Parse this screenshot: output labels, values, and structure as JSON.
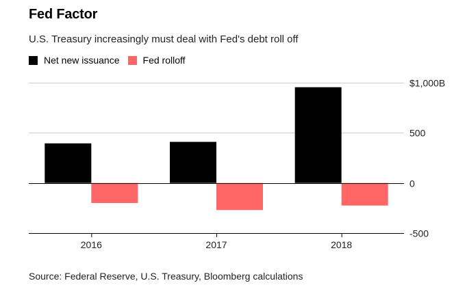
{
  "header": {
    "title": "Fed Factor",
    "subtitle": "U.S. Treasury increasingly must deal with Fed's debt roll off"
  },
  "legend": {
    "items": [
      {
        "label": "Net new issuance",
        "color": "#000000"
      },
      {
        "label": "Fed rolloff",
        "color": "#ff6666"
      }
    ]
  },
  "chart_data": {
    "type": "bar",
    "title": "Fed Factor",
    "subtitle": "U.S. Treasury increasingly must deal with Fed's debt roll off",
    "categories": [
      "2016",
      "2017",
      "2018"
    ],
    "series": [
      {
        "name": "Net new issuance",
        "color": "#000000",
        "values": [
          395,
          410,
          955
        ]
      },
      {
        "name": "Fed rolloff",
        "color": "#ff6666",
        "values": [
          -200,
          -270,
          -225
        ]
      }
    ],
    "ylim": [
      -500,
      1000
    ],
    "yticks": [
      1000,
      500,
      0,
      -500
    ],
    "ytick_labels": [
      "$1,000B",
      "500",
      "0",
      "-500"
    ],
    "xlabel": "",
    "ylabel": "",
    "grid": true
  },
  "footer": {
    "source": "Source: Federal Reserve, U.S. Treasury, Bloomberg calculations"
  }
}
